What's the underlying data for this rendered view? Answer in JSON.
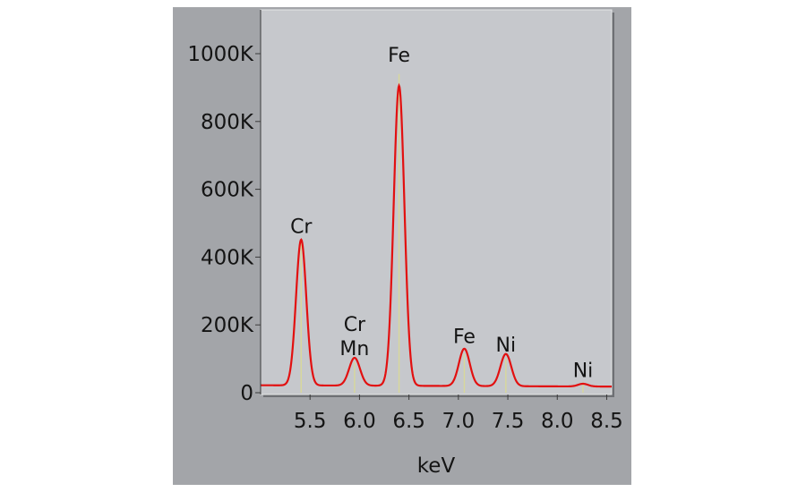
{
  "chart_data": {
    "type": "line",
    "title": "",
    "xlabel": "keV",
    "ylabel": "",
    "xlim": [
      5.0,
      8.55
    ],
    "ylim": [
      0,
      1000000
    ],
    "x_ticks": [
      {
        "value": 5.5,
        "label": "5.5"
      },
      {
        "value": 6.0,
        "label": "6.0"
      },
      {
        "value": 6.5,
        "label": "6.5"
      },
      {
        "value": 7.0,
        "label": "7.0"
      },
      {
        "value": 7.5,
        "label": "7.5"
      },
      {
        "value": 8.0,
        "label": "8.0"
      },
      {
        "value": 8.5,
        "label": "8.5"
      }
    ],
    "y_ticks": [
      {
        "value": 0,
        "label": "0"
      },
      {
        "value": 200000,
        "label": "200K"
      },
      {
        "value": 400000,
        "label": "400K"
      },
      {
        "value": 600000,
        "label": "600K"
      },
      {
        "value": 800000,
        "label": "800K"
      },
      {
        "value": 1000000,
        "label": "1000K"
      }
    ],
    "grid": false,
    "colors": {
      "spectrum": "#e21010",
      "marker": "#d8d89a",
      "plot_background": "#c6c8cc",
      "figure_background": "#a3a5a9"
    },
    "baseline": 22000,
    "series": [
      {
        "peaks": [
          {
            "x": 5.41,
            "y": 430000,
            "width": 0.052
          },
          {
            "x": 5.95,
            "y": 82000,
            "width": 0.055
          },
          {
            "x": 6.4,
            "y": 885000,
            "width": 0.054
          },
          {
            "x": 7.06,
            "y": 110000,
            "width": 0.055
          },
          {
            "x": 7.48,
            "y": 95000,
            "width": 0.055
          },
          {
            "x": 8.26,
            "y": 8000,
            "width": 0.05
          }
        ]
      }
    ],
    "markers": [
      {
        "x": 5.41,
        "y": 440000
      },
      {
        "x": 5.95,
        "y": 90000
      },
      {
        "x": 6.4,
        "y": 940000
      },
      {
        "x": 7.06,
        "y": 115000
      },
      {
        "x": 7.48,
        "y": 100000
      },
      {
        "x": 8.26,
        "y": 30000
      }
    ],
    "annotations": [
      {
        "lines": [
          "Cr"
        ],
        "x": 5.41,
        "y": 455000
      },
      {
        "lines": [
          "Cr",
          "Mn"
        ],
        "x": 5.95,
        "y": 95000
      },
      {
        "lines": [
          "Fe"
        ],
        "x": 6.4,
        "y": 960000
      },
      {
        "lines": [
          "Fe"
        ],
        "x": 7.06,
        "y": 130000
      },
      {
        "lines": [
          "Ni"
        ],
        "x": 7.48,
        "y": 105000
      },
      {
        "lines": [
          "Ni"
        ],
        "x": 8.26,
        "y": 30000
      }
    ]
  }
}
